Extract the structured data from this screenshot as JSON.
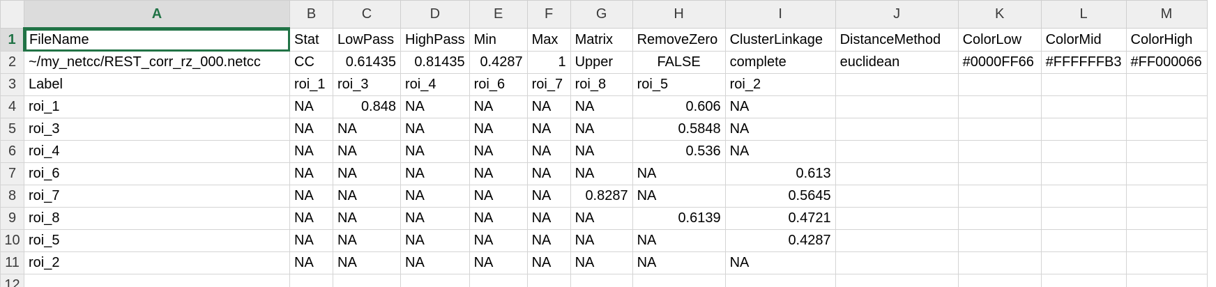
{
  "columns": [
    "A",
    "B",
    "C",
    "D",
    "E",
    "F",
    "G",
    "H",
    "I",
    "J",
    "K",
    "L",
    "M"
  ],
  "rows": [
    {
      "n": "1",
      "cells": [
        {
          "v": "FileName"
        },
        {
          "v": "Stat"
        },
        {
          "v": "LowPass"
        },
        {
          "v": "HighPass"
        },
        {
          "v": "Min"
        },
        {
          "v": "Max"
        },
        {
          "v": "Matrix"
        },
        {
          "v": "RemoveZero"
        },
        {
          "v": "ClusterLinkage"
        },
        {
          "v": "DistanceMethod"
        },
        {
          "v": "ColorLow"
        },
        {
          "v": "ColorMid"
        },
        {
          "v": "ColorHigh"
        }
      ]
    },
    {
      "n": "2",
      "cells": [
        {
          "v": "~/my_netcc/REST_corr_rz_000.netcc"
        },
        {
          "v": "CC"
        },
        {
          "v": "0.61435",
          "a": "num"
        },
        {
          "v": "0.81435",
          "a": "num"
        },
        {
          "v": "0.4287",
          "a": "num"
        },
        {
          "v": "1",
          "a": "num"
        },
        {
          "v": "Upper"
        },
        {
          "v": "FALSE",
          "a": "center"
        },
        {
          "v": "complete"
        },
        {
          "v": "euclidean"
        },
        {
          "v": "#0000FF66"
        },
        {
          "v": "#FFFFFFB3"
        },
        {
          "v": "#FF000066"
        }
      ]
    },
    {
      "n": "3",
      "cells": [
        {
          "v": "Label"
        },
        {
          "v": "roi_1"
        },
        {
          "v": "roi_3"
        },
        {
          "v": "roi_4"
        },
        {
          "v": "roi_6"
        },
        {
          "v": "roi_7"
        },
        {
          "v": "roi_8"
        },
        {
          "v": "roi_5"
        },
        {
          "v": "roi_2"
        },
        {
          "v": ""
        },
        {
          "v": ""
        },
        {
          "v": ""
        },
        {
          "v": ""
        }
      ]
    },
    {
      "n": "4",
      "cells": [
        {
          "v": "roi_1"
        },
        {
          "v": "NA"
        },
        {
          "v": "0.848",
          "a": "num"
        },
        {
          "v": "NA"
        },
        {
          "v": "NA"
        },
        {
          "v": "NA"
        },
        {
          "v": "NA"
        },
        {
          "v": "0.606",
          "a": "num"
        },
        {
          "v": "NA"
        },
        {
          "v": ""
        },
        {
          "v": ""
        },
        {
          "v": ""
        },
        {
          "v": ""
        }
      ]
    },
    {
      "n": "5",
      "cells": [
        {
          "v": "roi_3"
        },
        {
          "v": "NA"
        },
        {
          "v": "NA"
        },
        {
          "v": "NA"
        },
        {
          "v": "NA"
        },
        {
          "v": "NA"
        },
        {
          "v": "NA"
        },
        {
          "v": "0.5848",
          "a": "num"
        },
        {
          "v": "NA"
        },
        {
          "v": ""
        },
        {
          "v": ""
        },
        {
          "v": ""
        },
        {
          "v": ""
        }
      ]
    },
    {
      "n": "6",
      "cells": [
        {
          "v": "roi_4"
        },
        {
          "v": "NA"
        },
        {
          "v": "NA"
        },
        {
          "v": "NA"
        },
        {
          "v": "NA"
        },
        {
          "v": "NA"
        },
        {
          "v": "NA"
        },
        {
          "v": "0.536",
          "a": "num"
        },
        {
          "v": "NA"
        },
        {
          "v": ""
        },
        {
          "v": ""
        },
        {
          "v": ""
        },
        {
          "v": ""
        }
      ]
    },
    {
      "n": "7",
      "cells": [
        {
          "v": "roi_6"
        },
        {
          "v": "NA"
        },
        {
          "v": "NA"
        },
        {
          "v": "NA"
        },
        {
          "v": "NA"
        },
        {
          "v": "NA"
        },
        {
          "v": "NA"
        },
        {
          "v": "NA"
        },
        {
          "v": "0.613",
          "a": "num"
        },
        {
          "v": ""
        },
        {
          "v": ""
        },
        {
          "v": ""
        },
        {
          "v": ""
        }
      ]
    },
    {
      "n": "8",
      "cells": [
        {
          "v": "roi_7"
        },
        {
          "v": "NA"
        },
        {
          "v": "NA"
        },
        {
          "v": "NA"
        },
        {
          "v": "NA"
        },
        {
          "v": "NA"
        },
        {
          "v": "0.8287",
          "a": "num"
        },
        {
          "v": "NA"
        },
        {
          "v": "0.5645",
          "a": "num"
        },
        {
          "v": ""
        },
        {
          "v": ""
        },
        {
          "v": ""
        },
        {
          "v": ""
        }
      ]
    },
    {
      "n": "9",
      "cells": [
        {
          "v": "roi_8"
        },
        {
          "v": "NA"
        },
        {
          "v": "NA"
        },
        {
          "v": "NA"
        },
        {
          "v": "NA"
        },
        {
          "v": "NA"
        },
        {
          "v": "NA"
        },
        {
          "v": "0.6139",
          "a": "num"
        },
        {
          "v": "0.4721",
          "a": "num"
        },
        {
          "v": ""
        },
        {
          "v": ""
        },
        {
          "v": ""
        },
        {
          "v": ""
        }
      ]
    },
    {
      "n": "10",
      "cells": [
        {
          "v": "roi_5"
        },
        {
          "v": "NA"
        },
        {
          "v": "NA"
        },
        {
          "v": "NA"
        },
        {
          "v": "NA"
        },
        {
          "v": "NA"
        },
        {
          "v": "NA"
        },
        {
          "v": "NA"
        },
        {
          "v": "0.4287",
          "a": "num"
        },
        {
          "v": ""
        },
        {
          "v": ""
        },
        {
          "v": ""
        },
        {
          "v": ""
        }
      ]
    },
    {
      "n": "11",
      "cells": [
        {
          "v": "roi_2"
        },
        {
          "v": "NA"
        },
        {
          "v": "NA"
        },
        {
          "v": "NA"
        },
        {
          "v": "NA"
        },
        {
          "v": "NA"
        },
        {
          "v": "NA"
        },
        {
          "v": "NA"
        },
        {
          "v": "NA"
        },
        {
          "v": ""
        },
        {
          "v": ""
        },
        {
          "v": ""
        },
        {
          "v": ""
        }
      ]
    },
    {
      "n": "12",
      "cells": [
        {
          "v": ""
        },
        {
          "v": ""
        },
        {
          "v": ""
        },
        {
          "v": ""
        },
        {
          "v": ""
        },
        {
          "v": ""
        },
        {
          "v": ""
        },
        {
          "v": ""
        },
        {
          "v": ""
        },
        {
          "v": ""
        },
        {
          "v": ""
        },
        {
          "v": ""
        },
        {
          "v": ""
        }
      ]
    }
  ],
  "selection": {
    "column": "A",
    "row": "1"
  },
  "colors": {
    "accent": "#217346",
    "grid": "#d4d4d4",
    "header_bg": "#efefef"
  }
}
